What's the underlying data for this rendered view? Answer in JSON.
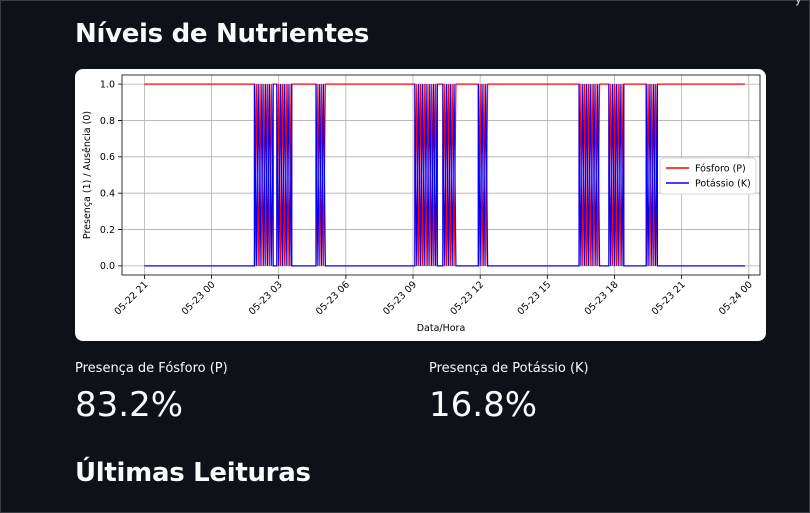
{
  "corner_glyph": "y",
  "headings": {
    "nutrients": "Níveis de Nutrientes",
    "last_readings": "Últimas Leituras"
  },
  "metrics": [
    {
      "label": "Presença de Fósforo (P)",
      "value": "83.2%"
    },
    {
      "label": "Presença de Potássio (K)",
      "value": "16.8%"
    }
  ],
  "colors": {
    "background": "#0e1117",
    "phosphorus": "#ff0000",
    "potassium": "#0000ff"
  },
  "chart_data": {
    "type": "line",
    "title": "",
    "xlabel": "Data/Hora",
    "ylabel": "Presença (1) / Ausência (0)",
    "xlim": [
      "2024-05-22 20:00",
      "2024-05-24 00:30"
    ],
    "ylim": [
      -0.05,
      1.05
    ],
    "x_ticks": [
      {
        "value": "2024-05-22 21:00",
        "label": "05-22 21"
      },
      {
        "value": "2024-05-23 00:00",
        "label": "05-23 00"
      },
      {
        "value": "2024-05-23 03:00",
        "label": "05-23 03"
      },
      {
        "value": "2024-05-23 06:00",
        "label": "05-23 06"
      },
      {
        "value": "2024-05-23 09:00",
        "label": "05-23 09"
      },
      {
        "value": "2024-05-23 12:00",
        "label": "05-23 12"
      },
      {
        "value": "2024-05-23 15:00",
        "label": "05-23 15"
      },
      {
        "value": "2024-05-23 18:00",
        "label": "05-23 18"
      },
      {
        "value": "2024-05-23 21:00",
        "label": "05-23 21"
      },
      {
        "value": "2024-05-24 00:00",
        "label": "05-24 00"
      }
    ],
    "y_ticks": [
      {
        "value": 0.0,
        "label": "0.0"
      },
      {
        "value": 0.2,
        "label": "0.2"
      },
      {
        "value": 0.4,
        "label": "0.4"
      },
      {
        "value": 0.6,
        "label": "0.6"
      },
      {
        "value": 0.8,
        "label": "0.8"
      },
      {
        "value": 1.0,
        "label": "1.0"
      }
    ],
    "grid": true,
    "legend_position": "right",
    "series": [
      {
        "name": "Fósforo (P)",
        "color": "#ff0000"
      },
      {
        "name": "Potássio (K)",
        "color": "#0000ff"
      }
    ],
    "x_start": "2024-05-22 21:00",
    "x_end": "2024-05-23 23:50",
    "potassium_present_intervals": [
      [
        "2024-05-23 01:55",
        "2024-05-23 02:45"
      ],
      [
        "2024-05-23 02:55",
        "2024-05-23 03:35"
      ],
      [
        "2024-05-23 04:40",
        "2024-05-23 05:05"
      ],
      [
        "2024-05-23 09:05",
        "2024-05-23 10:05"
      ],
      [
        "2024-05-23 10:20",
        "2024-05-23 10:55"
      ],
      [
        "2024-05-23 11:55",
        "2024-05-23 12:20"
      ],
      [
        "2024-05-23 16:25",
        "2024-05-23 17:20"
      ],
      [
        "2024-05-23 17:45",
        "2024-05-23 18:25"
      ],
      [
        "2024-05-23 19:25",
        "2024-05-23 19:55"
      ]
    ]
  }
}
